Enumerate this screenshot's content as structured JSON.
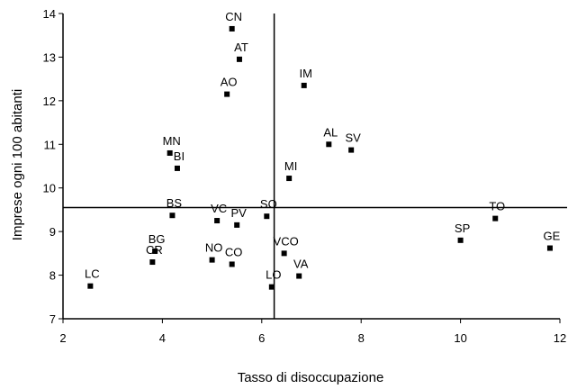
{
  "chart_data": {
    "type": "scatter",
    "title": "",
    "xlabel": "Tasso di disoccupazione",
    "ylabel": "Imprese ogni 100 abitanti",
    "xlim": [
      2,
      12
    ],
    "ylim": [
      7,
      14
    ],
    "xticks": [
      "2",
      "4",
      "6",
      "8",
      "10",
      "12"
    ],
    "yticks": [
      "7",
      "8",
      "9",
      "10",
      "11",
      "12",
      "13",
      "14"
    ],
    "reference_lines": {
      "x": 6.25,
      "y": 9.55
    },
    "grid": false,
    "legend": "none",
    "marker_color": "#000000",
    "points": [
      {
        "label": "CN",
        "x": 5.4,
        "y": 13.65
      },
      {
        "label": "AT",
        "x": 5.55,
        "y": 12.95
      },
      {
        "label": "AO",
        "x": 5.3,
        "y": 12.15
      },
      {
        "label": "IM",
        "x": 6.85,
        "y": 12.35
      },
      {
        "label": "AL",
        "x": 7.35,
        "y": 11.0
      },
      {
        "label": "SV",
        "x": 7.8,
        "y": 10.87
      },
      {
        "label": "MI",
        "x": 6.55,
        "y": 10.22
      },
      {
        "label": "MN",
        "x": 4.15,
        "y": 10.8
      },
      {
        "label": "BI",
        "x": 4.3,
        "y": 10.45
      },
      {
        "label": "BS",
        "x": 4.2,
        "y": 9.37
      },
      {
        "label": "VC",
        "x": 5.1,
        "y": 9.25
      },
      {
        "label": "PV",
        "x": 5.5,
        "y": 9.15
      },
      {
        "label": "SO",
        "x": 6.1,
        "y": 9.35
      },
      {
        "label": "TO",
        "x": 10.7,
        "y": 9.3
      },
      {
        "label": "SP",
        "x": 10.0,
        "y": 8.8
      },
      {
        "label": "GE",
        "x": 11.8,
        "y": 8.62
      },
      {
        "label": "BG",
        "x": 3.85,
        "y": 8.55
      },
      {
        "label": "CR",
        "x": 3.8,
        "y": 8.3
      },
      {
        "label": "NO",
        "x": 5.0,
        "y": 8.35
      },
      {
        "label": "CO",
        "x": 5.4,
        "y": 8.25
      },
      {
        "label": "VCO",
        "x": 6.45,
        "y": 8.5
      },
      {
        "label": "VA",
        "x": 6.75,
        "y": 7.98
      },
      {
        "label": "LO",
        "x": 6.2,
        "y": 7.73
      },
      {
        "label": "LC",
        "x": 2.55,
        "y": 7.75
      }
    ]
  }
}
